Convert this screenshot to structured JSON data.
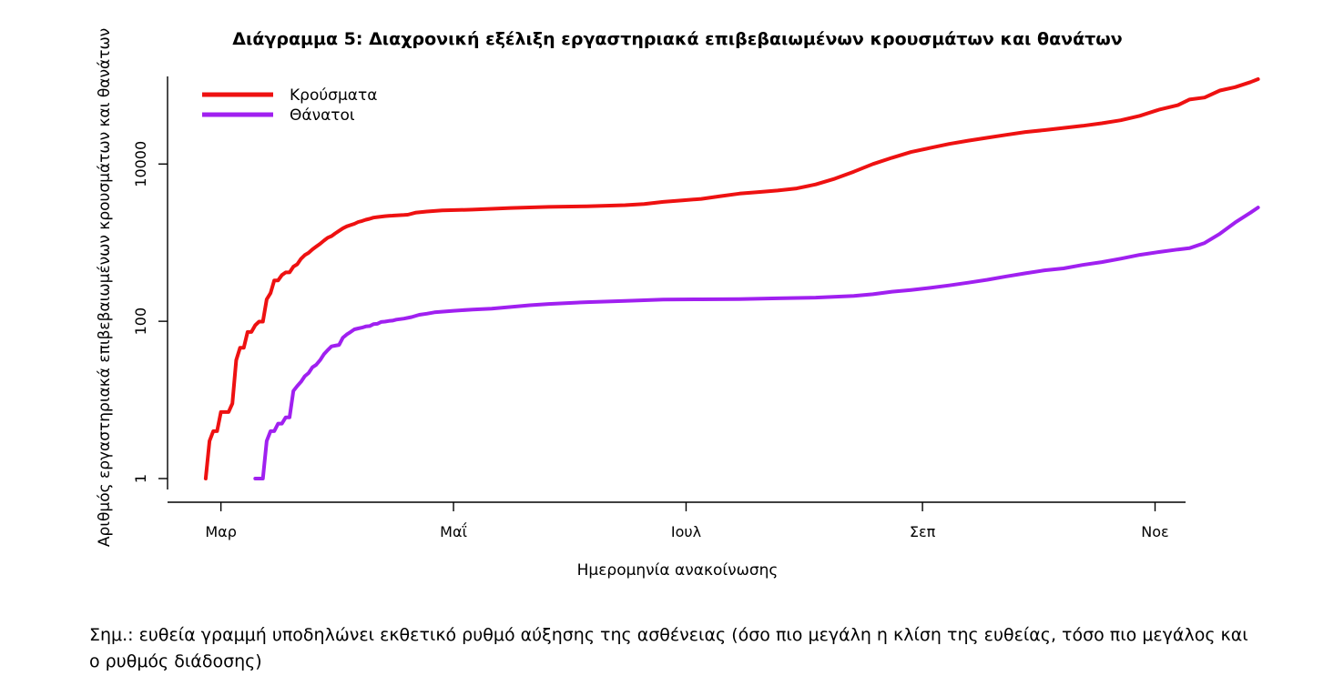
{
  "chart_data": {
    "type": "line",
    "title": "Διάγραμμα 5: Διαχρονική εξέλιξη εργαστηριακά επιβεβαιωμένων κρουσμάτων και θανάτων",
    "xlabel": "Ημερομηνία ανακοίνωσης",
    "ylabel": "Αριθμός εργαστηριακά επιβεβαιωμένων κρουσμάτων και θανάτων",
    "y_scale": "log10",
    "ylim": [
      0.5,
      130000
    ],
    "xlim_day": [
      -10,
      257
    ],
    "x_axis_origin": "2020-02-26",
    "x_ticks": [
      {
        "day": 4,
        "label": "Μαρ"
      },
      {
        "day": 65,
        "label": "Μαΐ"
      },
      {
        "day": 126,
        "label": "Ιουλ"
      },
      {
        "day": 188,
        "label": "Σεπ"
      },
      {
        "day": 249,
        "label": "Νοε"
      }
    ],
    "y_ticks": [
      {
        "value": 1,
        "label": "1"
      },
      {
        "value": 100,
        "label": "100"
      },
      {
        "value": 10000,
        "label": "10000"
      }
    ],
    "legend_position": "top-left",
    "grid": false,
    "series": [
      {
        "name": "Κρούσματα",
        "color": "#ee1111",
        "points": [
          [
            0,
            1
          ],
          [
            1,
            3
          ],
          [
            2,
            4
          ],
          [
            3,
            4
          ],
          [
            4,
            7
          ],
          [
            5,
            7
          ],
          [
            6,
            7
          ],
          [
            7,
            9
          ],
          [
            8,
            32
          ],
          [
            9,
            46
          ],
          [
            10,
            46
          ],
          [
            11,
            73
          ],
          [
            12,
            73
          ],
          [
            13,
            89
          ],
          [
            14,
            99
          ],
          [
            15,
            99
          ],
          [
            16,
            190
          ],
          [
            17,
            228
          ],
          [
            18,
            331
          ],
          [
            19,
            331
          ],
          [
            20,
            387
          ],
          [
            21,
            418
          ],
          [
            22,
            418
          ],
          [
            23,
            495
          ],
          [
            24,
            530
          ],
          [
            25,
            624
          ],
          [
            26,
            695
          ],
          [
            27,
            743
          ],
          [
            28,
            821
          ],
          [
            29,
            892
          ],
          [
            30,
            966
          ],
          [
            31,
            1061
          ],
          [
            32,
            1156
          ],
          [
            33,
            1212
          ],
          [
            34,
            1314
          ],
          [
            35,
            1415
          ],
          [
            36,
            1522
          ],
          [
            37,
            1613
          ],
          [
            38,
            1673
          ],
          [
            39,
            1735
          ],
          [
            40,
            1832
          ],
          [
            41,
            1884
          ],
          [
            42,
            1955
          ],
          [
            43,
            2011
          ],
          [
            44,
            2081
          ],
          [
            45,
            2114
          ],
          [
            46,
            2145
          ],
          [
            47,
            2170
          ],
          [
            48,
            2192
          ],
          [
            49,
            2207
          ],
          [
            50,
            2224
          ],
          [
            51,
            2235
          ],
          [
            52,
            2245
          ],
          [
            53,
            2268
          ],
          [
            55,
            2401
          ],
          [
            58,
            2490
          ],
          [
            62,
            2566
          ],
          [
            70,
            2632
          ],
          [
            80,
            2760
          ],
          [
            90,
            2850
          ],
          [
            100,
            2900
          ],
          [
            110,
            3000
          ],
          [
            115,
            3100
          ],
          [
            120,
            3300
          ],
          [
            125,
            3450
          ],
          [
            130,
            3600
          ],
          [
            135,
            3900
          ],
          [
            140,
            4200
          ],
          [
            145,
            4400
          ],
          [
            150,
            4600
          ],
          [
            155,
            4900
          ],
          [
            160,
            5500
          ],
          [
            165,
            6500
          ],
          [
            170,
            8000
          ],
          [
            175,
            10000
          ],
          [
            180,
            12000
          ],
          [
            185,
            14200
          ],
          [
            190,
            16000
          ],
          [
            195,
            18000
          ],
          [
            200,
            19800
          ],
          [
            205,
            21600
          ],
          [
            210,
            23500
          ],
          [
            215,
            25500
          ],
          [
            220,
            27000
          ],
          [
            225,
            28800
          ],
          [
            230,
            30600
          ],
          [
            235,
            33000
          ],
          [
            240,
            36000
          ],
          [
            245,
            41000
          ],
          [
            250,
            49000
          ],
          [
            255,
            56000
          ],
          [
            258,
            66000
          ],
          [
            262,
            70000
          ],
          [
            266,
            86000
          ],
          [
            270,
            95000
          ],
          [
            274,
            110000
          ],
          [
            276,
            120000
          ]
        ]
      },
      {
        "name": "Θάνατοι",
        "color": "#a020f0",
        "points": [
          [
            13,
            1
          ],
          [
            15,
            1
          ],
          [
            16,
            3
          ],
          [
            17,
            4
          ],
          [
            18,
            4
          ],
          [
            19,
            5
          ],
          [
            20,
            5
          ],
          [
            21,
            6
          ],
          [
            22,
            6
          ],
          [
            23,
            13
          ],
          [
            24,
            15
          ],
          [
            25,
            17
          ],
          [
            26,
            20
          ],
          [
            27,
            22
          ],
          [
            28,
            26
          ],
          [
            29,
            28
          ],
          [
            30,
            32
          ],
          [
            31,
            38
          ],
          [
            32,
            43
          ],
          [
            33,
            48
          ],
          [
            34,
            49
          ],
          [
            35,
            50
          ],
          [
            36,
            62
          ],
          [
            37,
            68
          ],
          [
            38,
            73
          ],
          [
            39,
            79
          ],
          [
            40,
            81
          ],
          [
            41,
            83
          ],
          [
            42,
            86
          ],
          [
            43,
            87
          ],
          [
            44,
            92
          ],
          [
            45,
            93
          ],
          [
            46,
            98
          ],
          [
            47,
            99
          ],
          [
            48,
            101
          ],
          [
            49,
            102
          ],
          [
            50,
            105
          ],
          [
            52,
            108
          ],
          [
            54,
            113
          ],
          [
            56,
            121
          ],
          [
            58,
            125
          ],
          [
            60,
            130
          ],
          [
            65,
            136
          ],
          [
            70,
            141
          ],
          [
            75,
            145
          ],
          [
            80,
            152
          ],
          [
            85,
            160
          ],
          [
            90,
            166
          ],
          [
            100,
            175
          ],
          [
            110,
            182
          ],
          [
            120,
            189
          ],
          [
            130,
            190
          ],
          [
            140,
            191
          ],
          [
            150,
            196
          ],
          [
            160,
            200
          ],
          [
            170,
            210
          ],
          [
            175,
            221
          ],
          [
            180,
            238
          ],
          [
            185,
            250
          ],
          [
            190,
            266
          ],
          [
            195,
            286
          ],
          [
            200,
            310
          ],
          [
            205,
            337
          ],
          [
            210,
            372
          ],
          [
            215,
            408
          ],
          [
            220,
            445
          ],
          [
            225,
            470
          ],
          [
            230,
            520
          ],
          [
            235,
            566
          ],
          [
            240,
            626
          ],
          [
            245,
            700
          ],
          [
            250,
            760
          ],
          [
            255,
            820
          ],
          [
            258,
            850
          ],
          [
            262,
            990
          ],
          [
            266,
            1300
          ],
          [
            270,
            1800
          ],
          [
            274,
            2400
          ],
          [
            276,
            2800
          ]
        ]
      }
    ]
  },
  "note": "Σημ.: ευθεία γραμμή υποδηλώνει εκθετικό ρυθμό αύξησης της ασθένειας (όσο πιο μεγάλη η κλίση της ευθείας, τόσο πιο μεγάλος και ο ρυθμός διάδοσης)"
}
